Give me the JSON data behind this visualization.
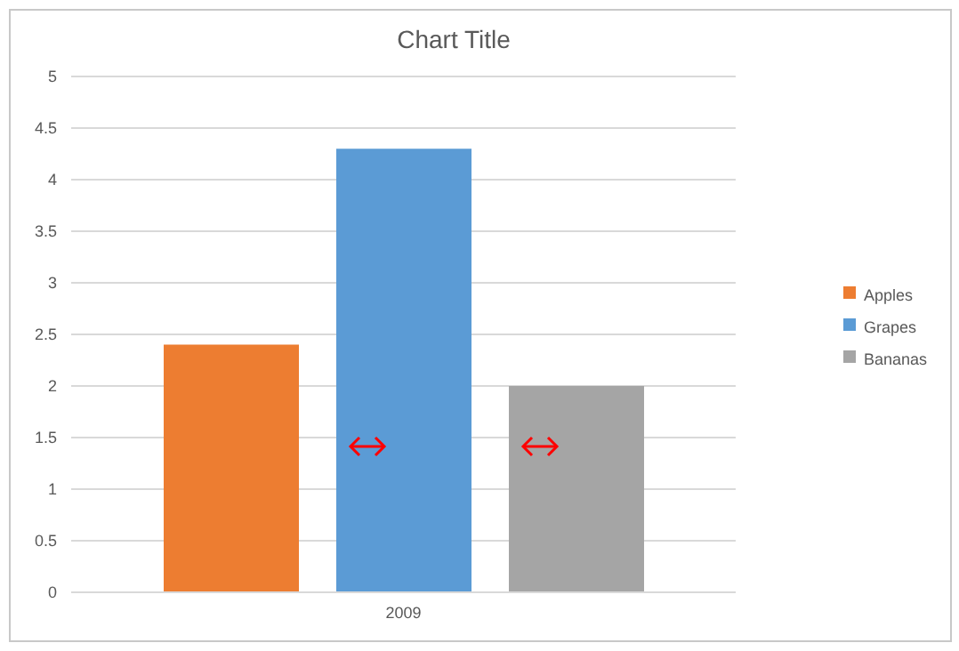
{
  "chart_data": {
    "type": "bar",
    "title": "Chart Title",
    "categories": [
      "2009"
    ],
    "series": [
      {
        "name": "Apples",
        "color": "#ed7d31",
        "values": [
          2.4
        ]
      },
      {
        "name": "Grapes",
        "color": "#5b9bd5",
        "values": [
          4.3
        ]
      },
      {
        "name": "Bananas",
        "color": "#a5a5a5",
        "values": [
          2.0
        ]
      }
    ],
    "ylim": [
      0,
      5
    ],
    "yticks": [
      0,
      0.5,
      1,
      1.5,
      2,
      2.5,
      3,
      3.5,
      4,
      4.5,
      5
    ],
    "grid": "y",
    "legend": "right"
  }
}
